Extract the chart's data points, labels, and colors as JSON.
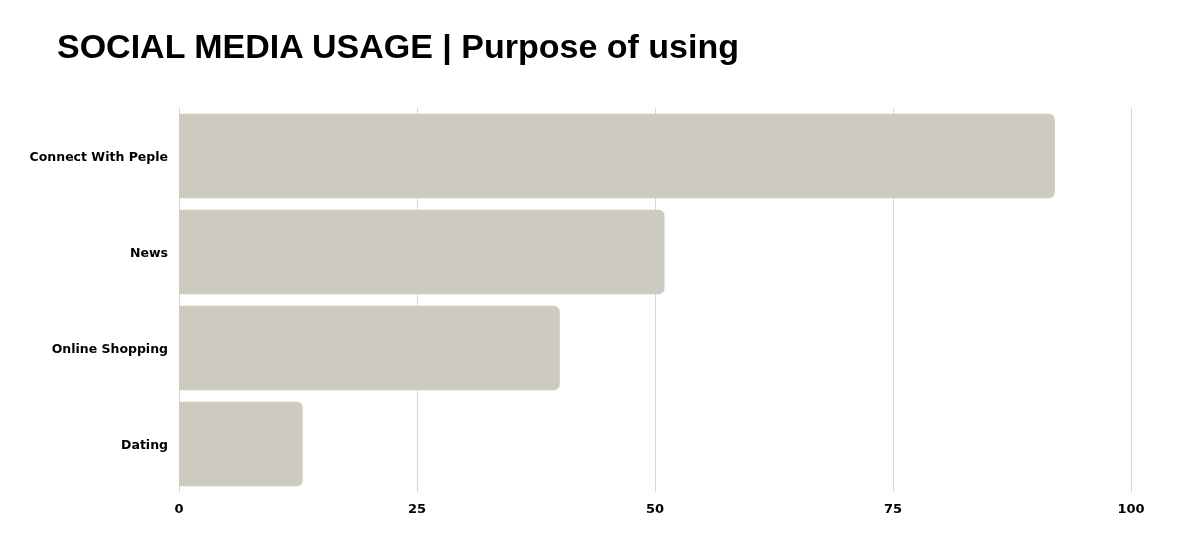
{
  "chart_data": {
    "type": "bar",
    "orientation": "horizontal",
    "title": "SOCIAL MEDIA USAGE | Purpose of using",
    "categories": [
      "Connect With Peple",
      "News",
      "Online Shopping",
      "Dating"
    ],
    "values": [
      92,
      51,
      40,
      13
    ],
    "color": "#cdcbbf",
    "xlim": [
      0,
      100
    ],
    "xticks": [
      0,
      25,
      50,
      75,
      100
    ],
    "grid": "x"
  }
}
